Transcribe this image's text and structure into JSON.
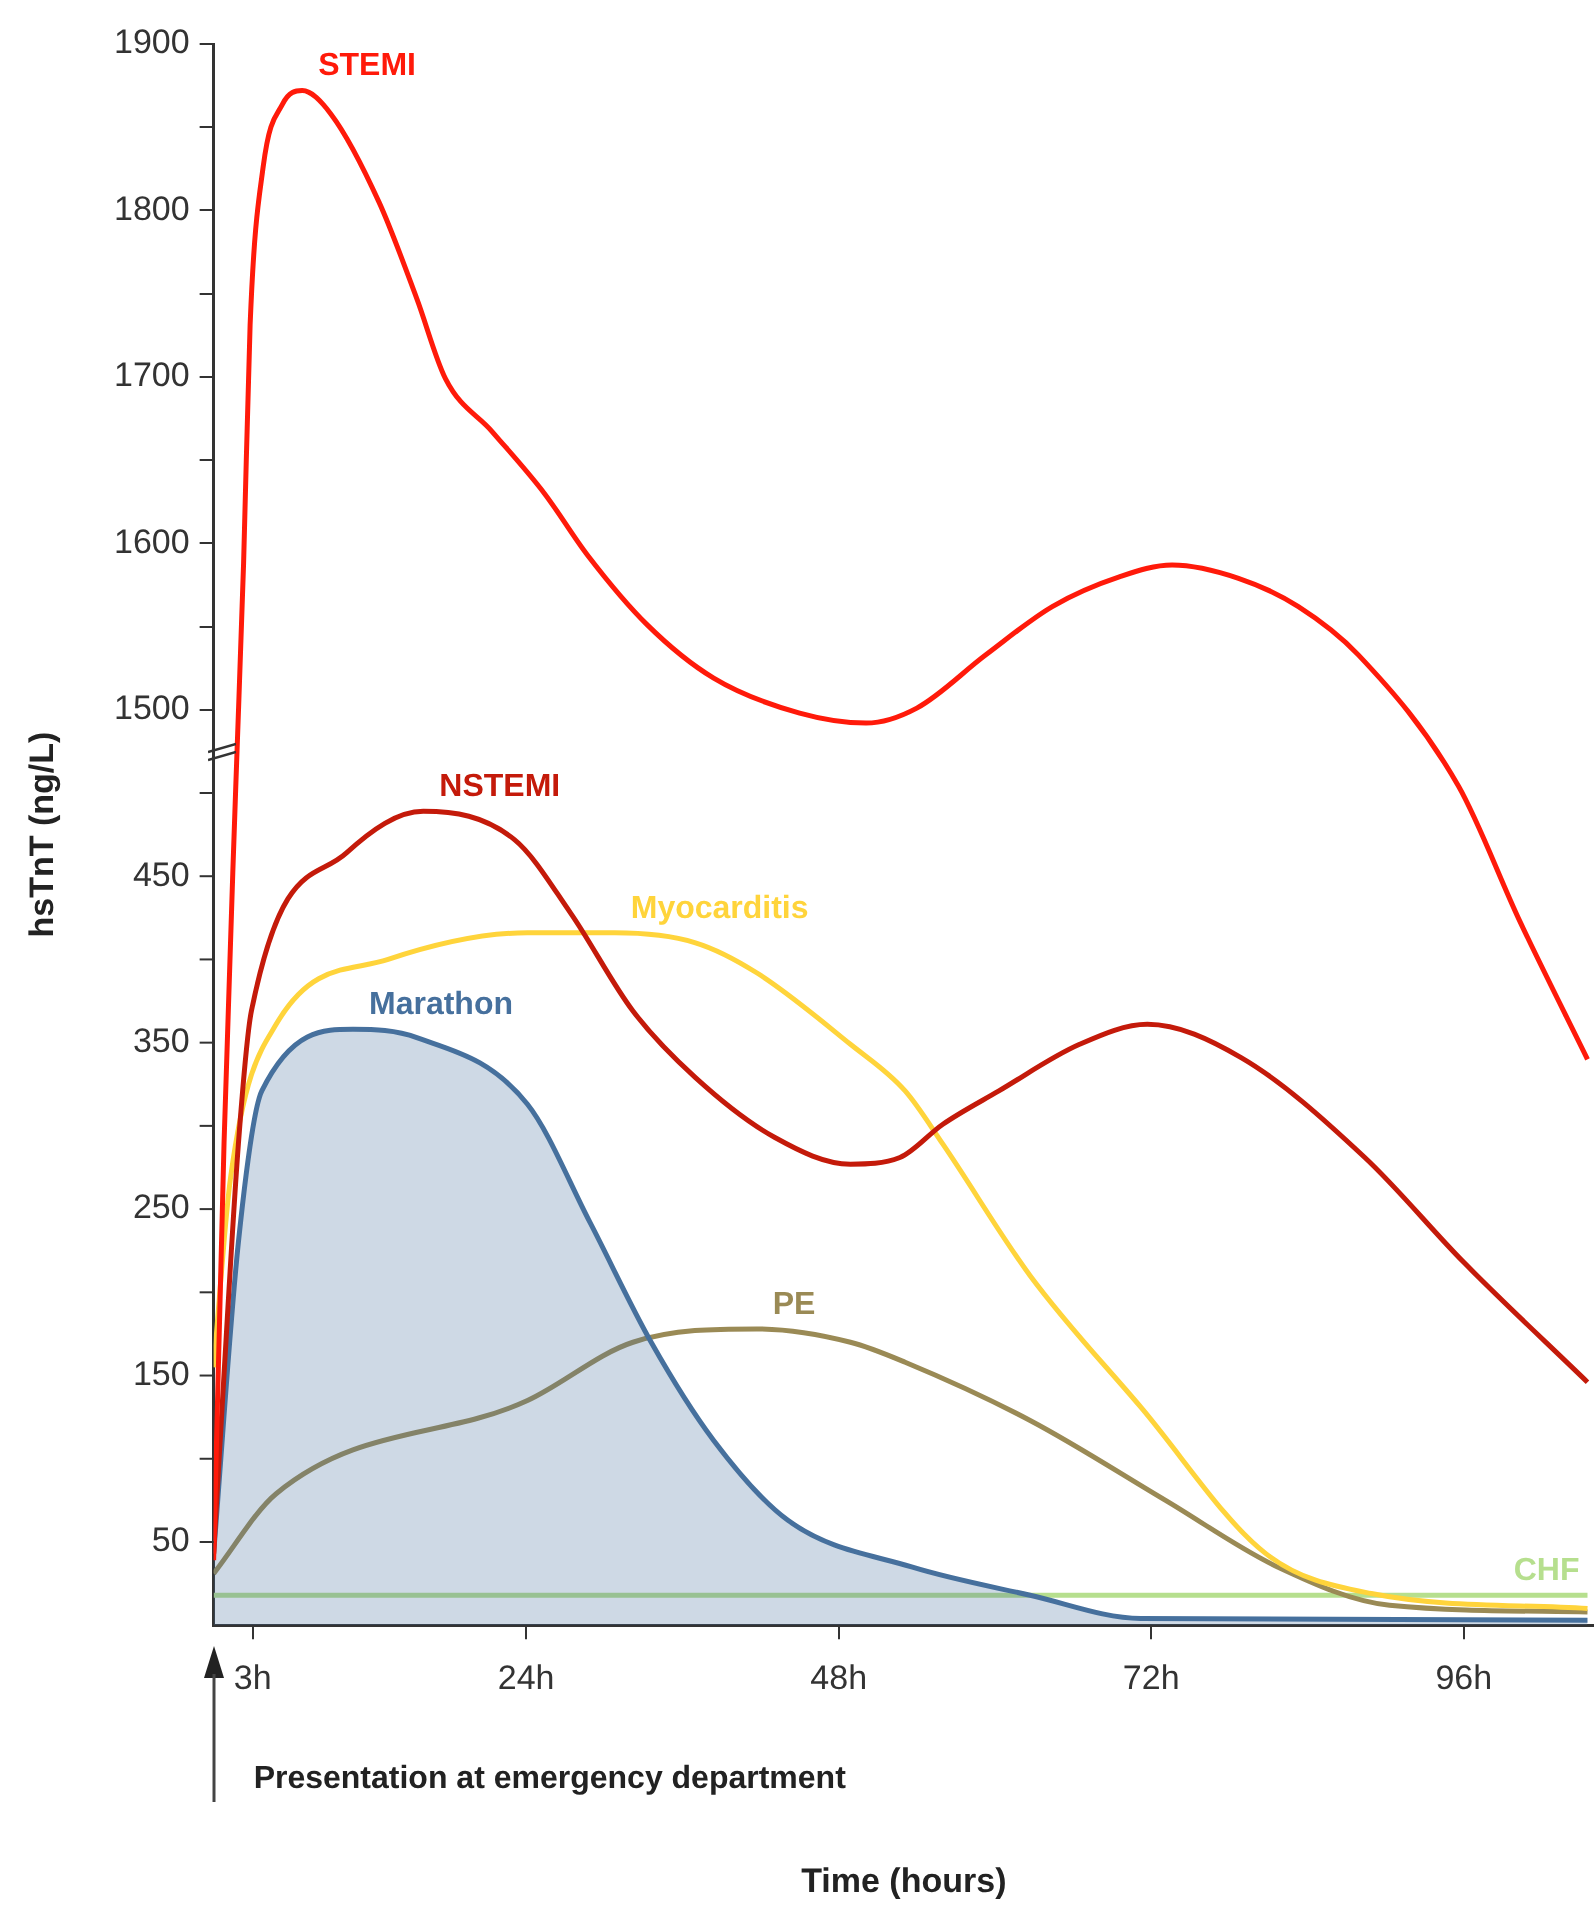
{
  "chart_data": {
    "type": "line",
    "xlabel": "Time (hours)",
    "ylabel": "hsTnT (ng/L)",
    "annotations": [
      "Presentation at emergency department"
    ],
    "xlim": [
      0,
      106
    ],
    "xticks": [
      {
        "value": 3,
        "label": "3h"
      },
      {
        "value": 24,
        "label": "24h"
      },
      {
        "value": 48,
        "label": "48h"
      },
      {
        "value": 72,
        "label": "72h"
      },
      {
        "value": 96,
        "label": "96h"
      }
    ],
    "y2lim": [
      0,
      950
    ],
    "y2ticks": [
      50,
      {
        "value": 100,
        "label": null
      },
      150,
      {
        "value": 200,
        "label": null
      },
      250,
      {
        "value": 300,
        "label": null
      },
      350,
      {
        "value": 400,
        "label": null
      },
      450,
      {
        "value": 500,
        "label": null
      }
    ],
    "ylim": [
      950,
      1900
    ],
    "yticks": [
      1500,
      {
        "value": 1550,
        "label": null
      },
      1600,
      {
        "value": 1650,
        "label": null
      },
      1700,
      {
        "value": 1750,
        "label": null
      },
      1800,
      {
        "value": 1850,
        "label": null
      },
      1900
    ],
    "grid": false,
    "legend": false,
    "marker": "none",
    "line_style": "solid",
    "series": [
      {
        "name": "STEMI",
        "color": "#ff1a0a",
        "x": [
          0,
          0.8,
          1.7,
          2.3,
          2.8,
          3.8,
          5.3,
          6.8,
          9,
          12.7,
          15.6,
          17.8,
          21.4,
          25.4,
          28.7,
          33.3,
          38.4,
          45,
          50.1,
          54,
          59.3,
          64.4,
          69.6,
          73.6,
          78.7,
          83.3,
          87.9,
          95.6,
          100.3,
          105.5
        ],
        "values": [
          989,
          1240,
          1454,
          1588,
          1731,
          1826,
          1864,
          1872,
          1858,
          1805,
          1747,
          1699,
          1667,
          1630,
          1593,
          1551,
          1519,
          1498,
          1492,
          1501,
          1533,
          1562,
          1580,
          1587,
          1579,
          1562,
          1533,
          1454,
          1373,
          1290
        ]
      },
      {
        "name": "NSTEMI",
        "color": "#c41a0a",
        "axis": "y2",
        "x": [
          0,
          0.65,
          1.9,
          2.9,
          10.2,
          16.1,
          23.1,
          27.4,
          32.2,
          37,
          43.1,
          48.9,
          52.7,
          56,
          60.3,
          66.5,
          71.7,
          78.9,
          88.4,
          96,
          105.5
        ],
        "values": [
          43,
          131,
          289,
          369,
          464,
          489,
          472,
          428,
          369,
          329,
          293,
          277,
          281,
          301,
          321,
          349,
          361,
          341,
          281,
          218,
          146
        ]
      },
      {
        "name": "Myocarditis",
        "color": "#ffd43b",
        "axis": "y2",
        "x": [
          0,
          1.3,
          4.8,
          13.4,
          24.1,
          30.8,
          37,
          41.7,
          48.9,
          53.1,
          56,
          62.7,
          71.2,
          80.8,
          88.9,
          105.5
        ],
        "values": [
          155,
          269,
          361,
          400,
          416,
          416,
          410,
          392,
          349,
          321,
          289,
          210,
          131,
          43,
          19,
          10
        ]
      },
      {
        "name": "Marathon",
        "color": "#46709d",
        "axis": "y2",
        "type": "area",
        "x": [
          0,
          1.9,
          3.7,
          10.7,
          15.6,
          24.1,
          28.9,
          33.6,
          38.4,
          44.1,
          53.6,
          62.7,
          71.2,
          105.5
        ],
        "values": [
          43,
          230,
          321,
          358,
          353,
          313,
          242,
          170,
          111,
          63,
          35,
          18,
          4,
          3
        ]
      },
      {
        "name": "PE",
        "color": "#9a8a55",
        "axis": "y2",
        "x": [
          0,
          4.8,
          24.1,
          32.2,
          41.7,
          48.9,
          53.1,
          62.7,
          73.1,
          81.7,
          90.3,
          105.5
        ],
        "values": [
          31,
          79,
          135,
          170,
          178,
          170,
          158,
          123,
          75,
          35,
          12,
          8
        ]
      },
      {
        "name": "CHF",
        "color": "#b6df8e",
        "axis": "y2",
        "x": [
          0,
          105.5
        ],
        "values": [
          18,
          18
        ]
      }
    ]
  }
}
